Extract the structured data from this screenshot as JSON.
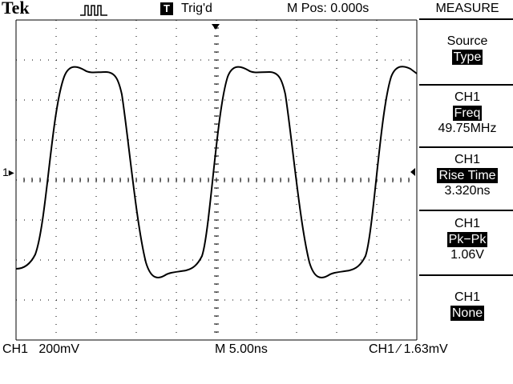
{
  "header": {
    "brand": "Tek",
    "trigger_badge": "T",
    "trigger_status": "Trig'd",
    "m_pos": "M Pos: 0.000s",
    "menu_title": "MEASURE"
  },
  "menu": {
    "source": {
      "label": "Source",
      "value": "Type"
    },
    "measurements": [
      {
        "channel": "CH1",
        "type": "Freq",
        "value": "49.75MHz"
      },
      {
        "channel": "CH1",
        "type": "Rise Time",
        "value": "3.320ns"
      },
      {
        "channel": "CH1",
        "type": "Pk−Pk",
        "value": "1.06V"
      },
      {
        "channel": "CH1",
        "type": "None",
        "value": ""
      }
    ]
  },
  "footer": {
    "ch_scale": "CH1   200mV",
    "timebase": "M 5.00ns",
    "trigger": "CH1 ∕ 1.63mV"
  },
  "markers": {
    "ch1_ground": "1▸"
  }
}
